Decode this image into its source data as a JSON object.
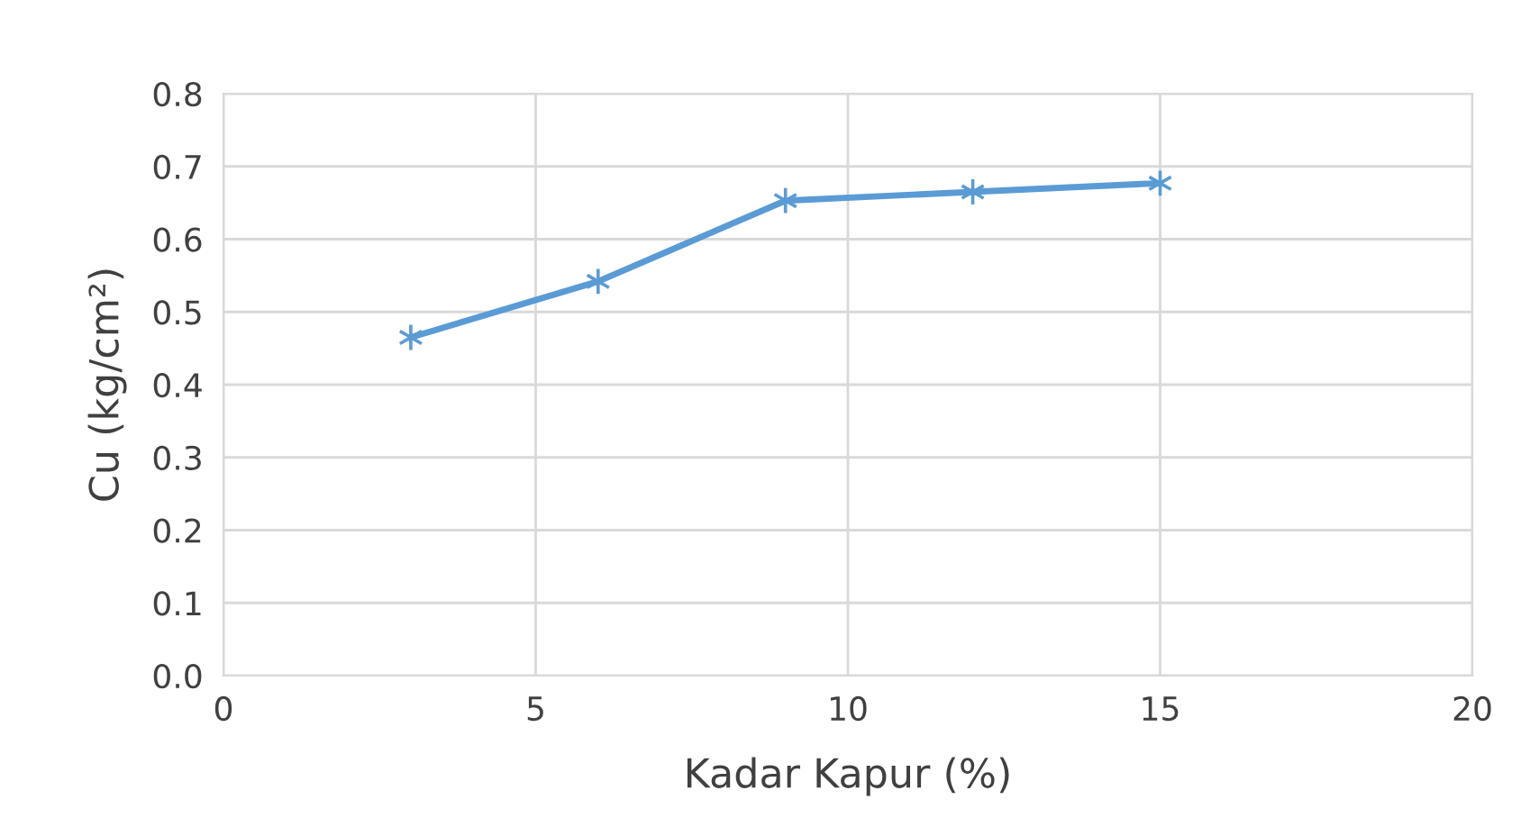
{
  "chart_data": {
    "type": "line",
    "xlabel": "Kadar Kapur (%)",
    "ylabel": "Cu (kg/cm²)",
    "x": [
      3,
      6,
      9,
      12,
      15
    ],
    "series": [
      {
        "color": "#5b9bd5",
        "values": [
          0.465,
          0.542,
          0.653,
          0.665,
          0.677
        ]
      }
    ],
    "xlim": [
      0,
      20
    ],
    "xticks": [
      0,
      5,
      10,
      15,
      20
    ],
    "ylim": [
      0,
      0.8
    ],
    "yticks": [
      {
        "value": 0,
        "label": "0.0"
      },
      0.1,
      0.2,
      0.3,
      0.4,
      0.5,
      0.6,
      0.7,
      0.8
    ],
    "grid": true,
    "marker": "cross",
    "line_style": "solid"
  }
}
